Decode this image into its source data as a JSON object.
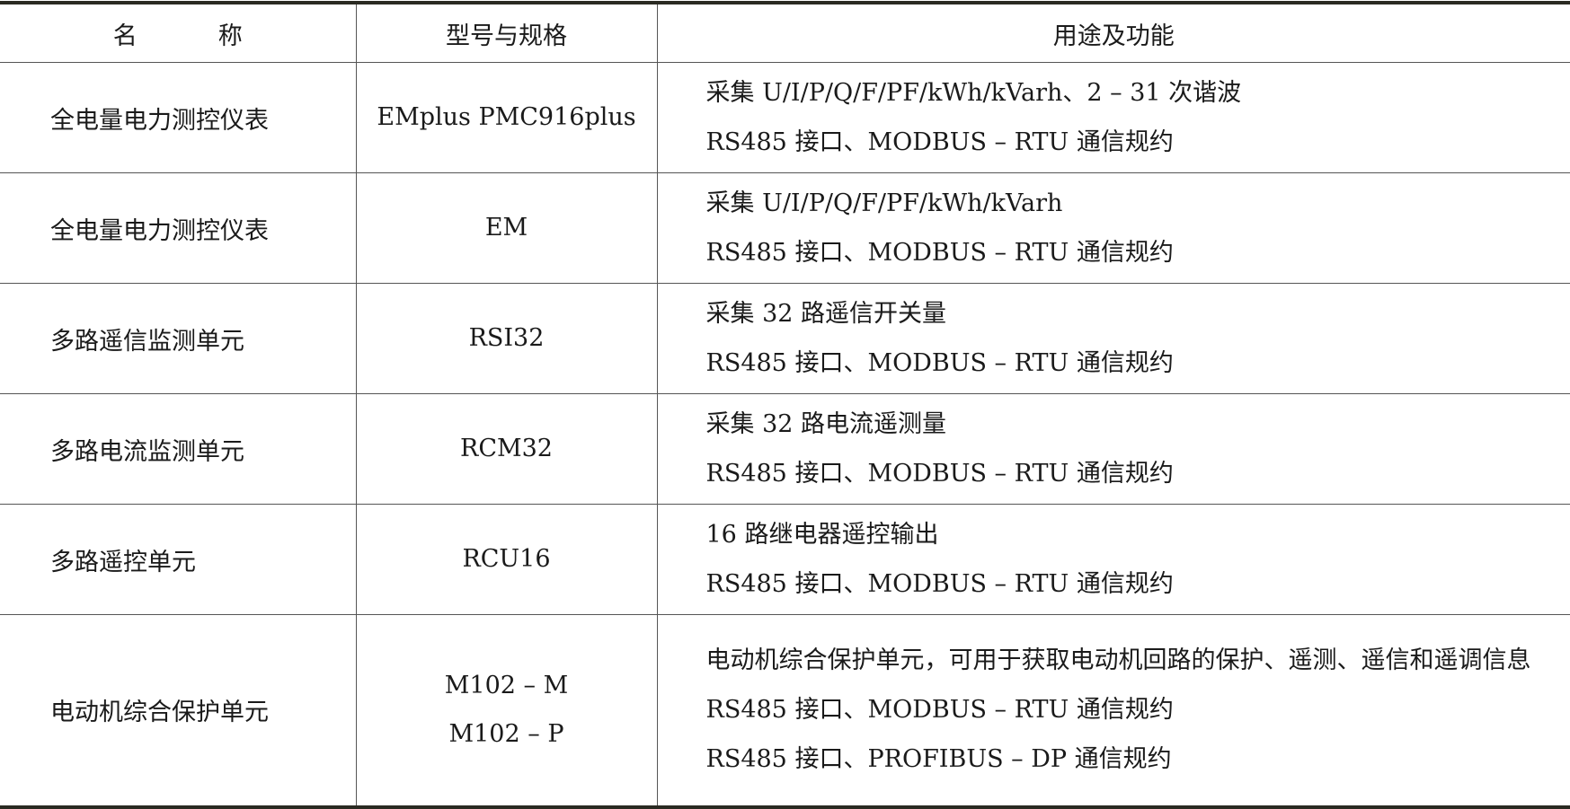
{
  "headers": {
    "name_a": "名",
    "name_b": "称",
    "model": "型号与规格",
    "function": "用途及功能"
  },
  "rows": [
    {
      "name": "全电量电力测控仪表",
      "models": [
        "EMplus PMC916plus"
      ],
      "functions": [
        "采集 U/I/P/Q/F/PF/kWh/kVarh、2 – 31 次谐波",
        "RS485 接口、MODBUS – RTU 通信规约"
      ]
    },
    {
      "name": "全电量电力测控仪表",
      "models": [
        "EM"
      ],
      "functions": [
        "采集 U/I/P/Q/F/PF/kWh/kVarh",
        "RS485 接口、MODBUS – RTU 通信规约"
      ]
    },
    {
      "name": "多路遥信监测单元",
      "models": [
        "RSI32"
      ],
      "functions": [
        "采集 32 路遥信开关量",
        "RS485 接口、MODBUS – RTU 通信规约"
      ]
    },
    {
      "name": "多路电流监测单元",
      "models": [
        "RCM32"
      ],
      "functions": [
        "采集 32 路电流遥测量",
        "RS485 接口、MODBUS – RTU 通信规约"
      ]
    },
    {
      "name": "多路遥控单元",
      "models": [
        "RCU16"
      ],
      "functions": [
        "16 路继电器遥控输出",
        "RS485 接口、MODBUS – RTU 通信规约"
      ]
    },
    {
      "name": "电动机综合保护单元",
      "models": [
        "M102 – M",
        "M102 – P"
      ],
      "functions": [
        "电动机综合保护单元，可用于获取电动机回路的保护、遥测、遥信和遥调信息",
        "RS485 接口、MODBUS – RTU 通信规约",
        "RS485 接口、PROFIBUS – DP 通信规约"
      ]
    }
  ]
}
